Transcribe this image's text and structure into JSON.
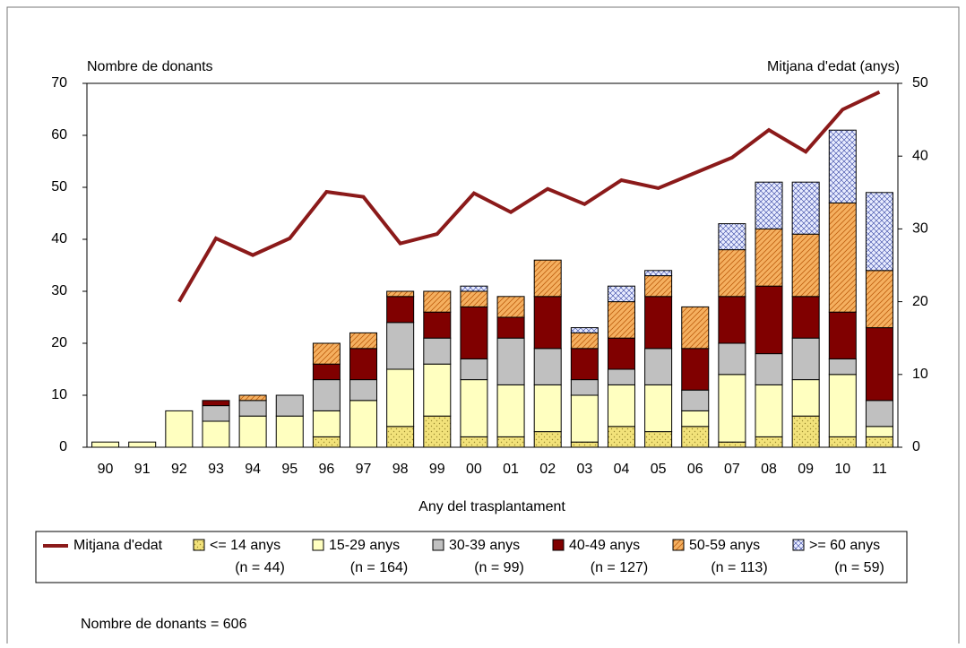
{
  "chart_data": {
    "type": "stacked-bar-line",
    "y_label": "Nombre de donants",
    "y2_label": "Mitjana d'edat (anys)",
    "x_label": "Any del trasplantament",
    "footer": "Nombre de donants = 606",
    "categories": [
      "90",
      "91",
      "92",
      "93",
      "94",
      "95",
      "96",
      "97",
      "98",
      "99",
      "00",
      "01",
      "02",
      "03",
      "04",
      "05",
      "06",
      "07",
      "08",
      "09",
      "10",
      "11"
    ],
    "ylim": [
      0,
      70
    ],
    "yticks": [
      0,
      10,
      20,
      30,
      40,
      50,
      60,
      70
    ],
    "y2lim": [
      0,
      50
    ],
    "y2ticks": [
      0,
      10,
      20,
      30,
      40,
      50
    ],
    "series": [
      {
        "name": "Mitjana d'edat",
        "type": "line",
        "axis": "y2",
        "color": "#8b1a1a",
        "values": [
          null,
          null,
          20,
          28.7,
          26.4,
          28.7,
          35.1,
          34.4,
          28,
          29.3,
          34.9,
          32.3,
          35.5,
          33.4,
          36.7,
          35.6,
          37.7,
          39.8,
          43.6,
          40.6,
          46.4,
          48.8
        ]
      },
      {
        "name": "<= 14 anys",
        "sublabel": "(n = 44)",
        "type": "bar",
        "color": "#f2e27a",
        "pattern": "dots",
        "values": [
          0,
          0,
          0,
          0,
          0,
          0,
          2,
          0,
          4,
          6,
          2,
          2,
          3,
          1,
          4,
          3,
          4,
          1,
          2,
          6,
          2,
          2
        ]
      },
      {
        "name": "15-29 anys",
        "sublabel": "(n = 164)",
        "type": "bar",
        "color": "#ffffc0",
        "pattern": "none",
        "values": [
          1,
          1,
          7,
          5,
          6,
          6,
          5,
          9,
          11,
          10,
          11,
          10,
          9,
          9,
          8,
          9,
          3,
          13,
          10,
          7,
          12,
          2
        ]
      },
      {
        "name": "30-39 anys",
        "sublabel": "(n = 99)",
        "type": "bar",
        "color": "#c0c0c0",
        "pattern": "none",
        "values": [
          0,
          0,
          0,
          3,
          3,
          4,
          6,
          4,
          9,
          5,
          4,
          9,
          7,
          3,
          3,
          7,
          4,
          6,
          6,
          8,
          3,
          5
        ]
      },
      {
        "name": "40-49 anys",
        "sublabel": "(n = 127)",
        "type": "bar",
        "color": "#800000",
        "pattern": "none",
        "values": [
          0,
          0,
          0,
          1,
          0,
          0,
          3,
          6,
          5,
          5,
          10,
          4,
          10,
          6,
          6,
          10,
          8,
          9,
          13,
          8,
          9,
          14
        ]
      },
      {
        "name": "50-59 anys",
        "sublabel": "(n = 113)",
        "type": "bar",
        "color": "#f5b060",
        "pattern": "hatch",
        "values": [
          0,
          0,
          0,
          0,
          1,
          0,
          4,
          3,
          1,
          4,
          3,
          4,
          7,
          3,
          7,
          4,
          8,
          9,
          11,
          12,
          21,
          11
        ]
      },
      {
        "name": ">= 60 anys",
        "sublabel": "(n = 59)",
        "type": "bar",
        "color": "#e8ecff",
        "pattern": "cross",
        "values": [
          0,
          0,
          0,
          0,
          0,
          0,
          0,
          0,
          0,
          0,
          1,
          0,
          0,
          1,
          3,
          1,
          0,
          5,
          9,
          10,
          14,
          15
        ]
      }
    ]
  }
}
